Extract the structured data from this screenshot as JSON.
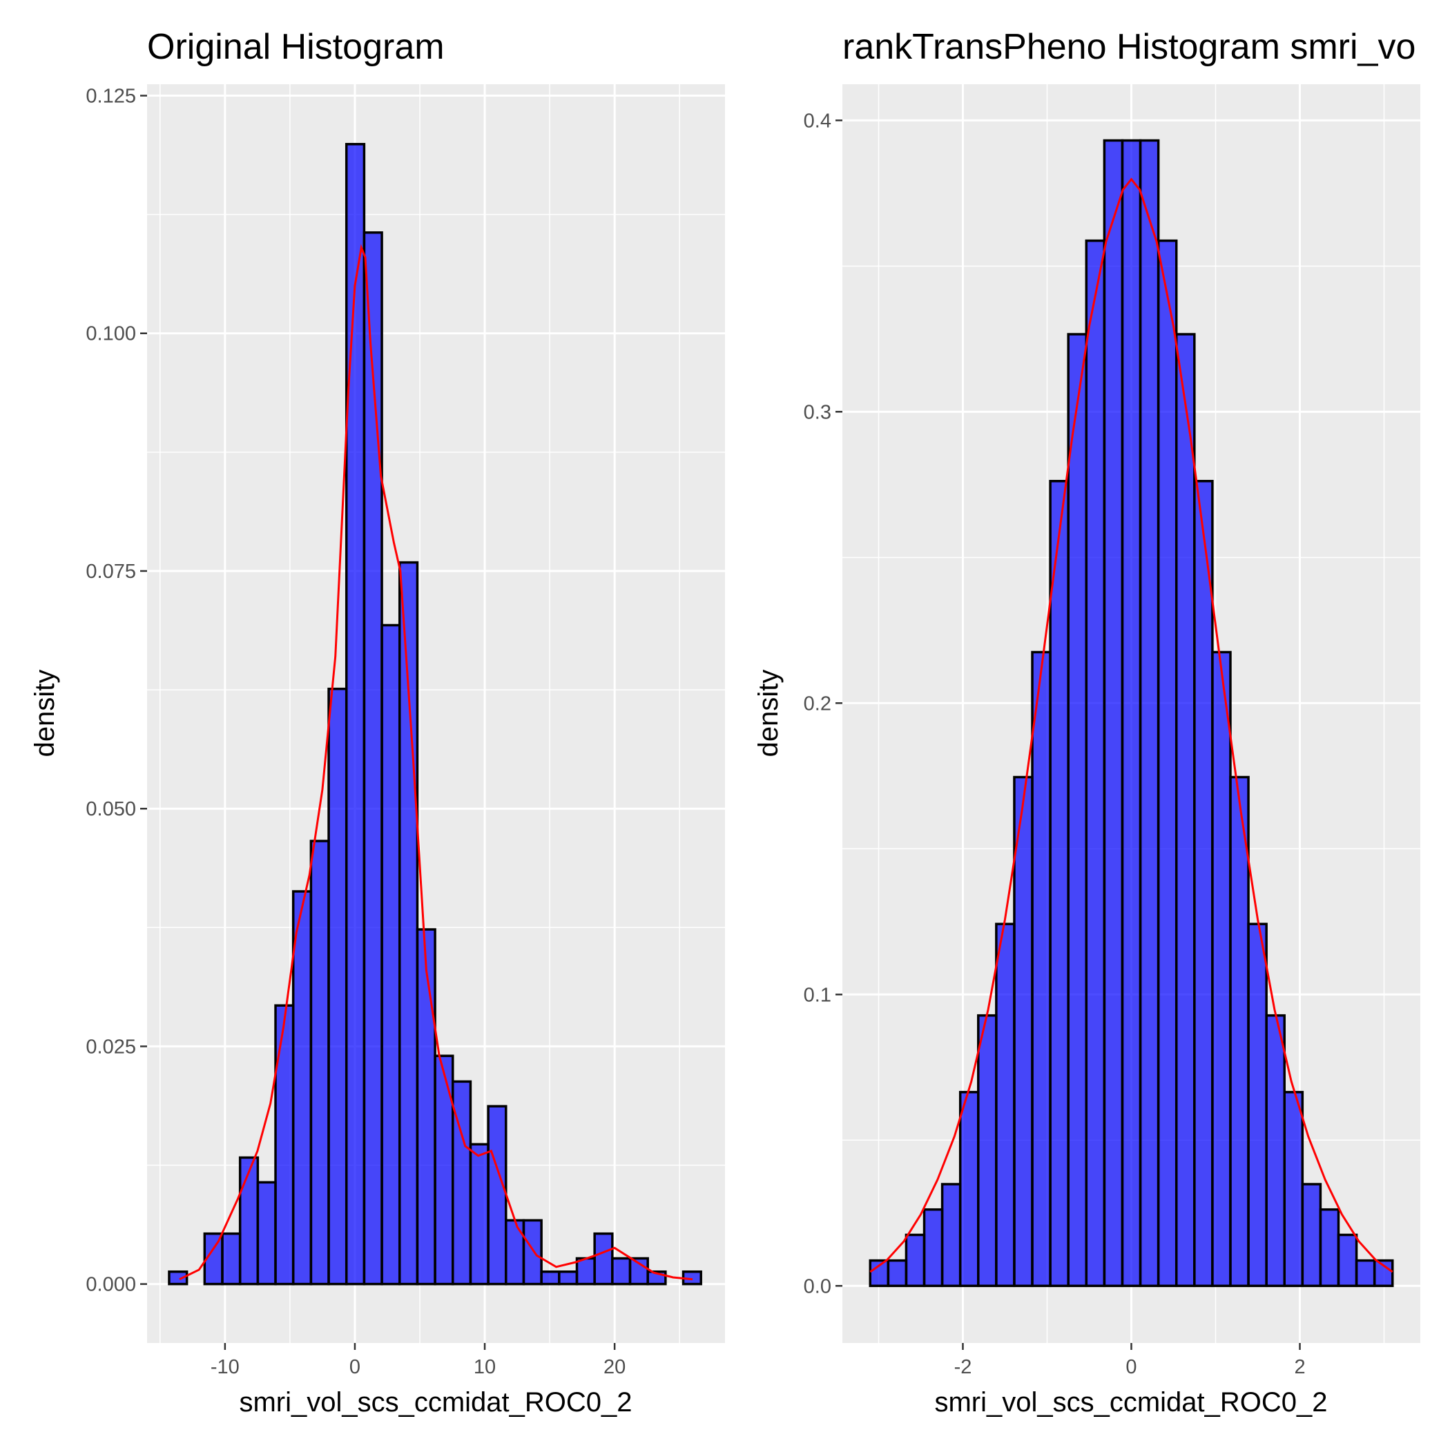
{
  "chart_data": [
    {
      "type": "histogram",
      "title": "Original Histogram",
      "xlabel": "smri_vol_scs_ccmidat_ROC0_2",
      "ylabel": "density",
      "xlim": [
        -16.0,
        28.5
      ],
      "ylim": [
        -0.0062,
        0.1262
      ],
      "x_breaks": [
        -10,
        0,
        10,
        20
      ],
      "x_tick_labels": [
        "-10",
        "0",
        "10",
        "20"
      ],
      "y_breaks": [
        0.0,
        0.025,
        0.05,
        0.075,
        0.1,
        0.125
      ],
      "y_tick_labels": [
        "0.000",
        "0.025",
        "0.050",
        "0.075",
        "0.100",
        "0.125"
      ],
      "grid": true,
      "bar_fill": "#0000ff",
      "bar_outline": "#000000",
      "bins": {
        "x_start": -14.3,
        "bin_width": 1.365,
        "density": [
          0.0013,
          0.0,
          0.0053,
          0.0053,
          0.0133,
          0.0107,
          0.0293,
          0.0413,
          0.0466,
          0.0626,
          0.1199,
          0.1106,
          0.0693,
          0.0759,
          0.0373,
          0.024,
          0.0213,
          0.0147,
          0.0187,
          0.0067,
          0.0067,
          0.0013,
          0.0013,
          0.0027,
          0.0053,
          0.0027,
          0.0027,
          0.0013,
          0.0,
          0.0013
        ]
      },
      "density_curve": {
        "color": "#ff0000",
        "x": [
          -13.5,
          -12.0,
          -10.5,
          -9.0,
          -7.5,
          -6.5,
          -5.5,
          -4.5,
          -3.5,
          -2.5,
          -1.5,
          -0.5,
          0.0,
          0.5,
          0.8,
          1.2,
          2.0,
          3.0,
          3.5,
          4.5,
          5.5,
          6.5,
          7.5,
          8.5,
          9.5,
          10.5,
          11.5,
          12.5,
          14.0,
          15.5,
          17.0,
          18.5,
          20.0,
          21.5,
          23.0,
          24.5,
          26.0
        ],
        "y": [
          0.0005,
          0.0015,
          0.0045,
          0.009,
          0.014,
          0.019,
          0.027,
          0.037,
          0.043,
          0.052,
          0.066,
          0.094,
          0.105,
          0.109,
          0.108,
          0.099,
          0.085,
          0.078,
          0.075,
          0.055,
          0.033,
          0.024,
          0.019,
          0.0145,
          0.0135,
          0.014,
          0.01,
          0.006,
          0.003,
          0.0018,
          0.0023,
          0.003,
          0.0038,
          0.0025,
          0.0012,
          0.0007,
          0.0005
        ]
      }
    },
    {
      "type": "histogram",
      "title": "rankTransPheno Histogram smri_vo",
      "xlabel": "smri_vol_scs_ccmidat_ROC0_2",
      "ylabel": "density",
      "xlim": [
        -3.43,
        3.43
      ],
      "ylim": [
        -0.0196,
        0.4124
      ],
      "x_breaks": [
        -2,
        0,
        2
      ],
      "x_tick_labels": [
        "-2",
        "0",
        "2"
      ],
      "y_breaks": [
        0.0,
        0.1,
        0.2,
        0.3,
        0.4
      ],
      "y_tick_labels": [
        "0.0",
        "0.1",
        "0.2",
        "0.3",
        "0.4"
      ],
      "grid": true,
      "bar_fill": "#0000ff",
      "bar_outline": "#000000",
      "bins": {
        "x_start": -3.1,
        "bin_width": 0.2138,
        "density": [
          0.0087,
          0.0087,
          0.0175,
          0.0262,
          0.0349,
          0.0665,
          0.0928,
          0.1242,
          0.1746,
          0.2175,
          0.2762,
          0.3266,
          0.3587,
          0.3931,
          0.3931,
          0.3931,
          0.3587,
          0.3266,
          0.2762,
          0.2175,
          0.1746,
          0.1242,
          0.0928,
          0.0665,
          0.0349,
          0.0262,
          0.0175,
          0.0087,
          0.0087
        ]
      },
      "density_curve": {
        "color": "#ff0000",
        "x": [
          -3.1,
          -2.9,
          -2.7,
          -2.5,
          -2.3,
          -2.1,
          -1.9,
          -1.7,
          -1.5,
          -1.3,
          -1.1,
          -0.9,
          -0.7,
          -0.5,
          -0.3,
          -0.1,
          0.0,
          0.1,
          0.3,
          0.5,
          0.7,
          0.9,
          1.1,
          1.3,
          1.5,
          1.7,
          1.9,
          2.1,
          2.3,
          2.5,
          2.7,
          2.9,
          3.1
        ],
        "y": [
          0.0048,
          0.0089,
          0.0153,
          0.0245,
          0.0365,
          0.0513,
          0.0701,
          0.0948,
          0.1258,
          0.1628,
          0.2046,
          0.2488,
          0.2917,
          0.3294,
          0.3584,
          0.3762,
          0.3798,
          0.3762,
          0.3584,
          0.3294,
          0.2917,
          0.2488,
          0.2046,
          0.1628,
          0.1258,
          0.0948,
          0.0701,
          0.0513,
          0.0365,
          0.0245,
          0.0153,
          0.0089,
          0.0048
        ]
      }
    }
  ]
}
